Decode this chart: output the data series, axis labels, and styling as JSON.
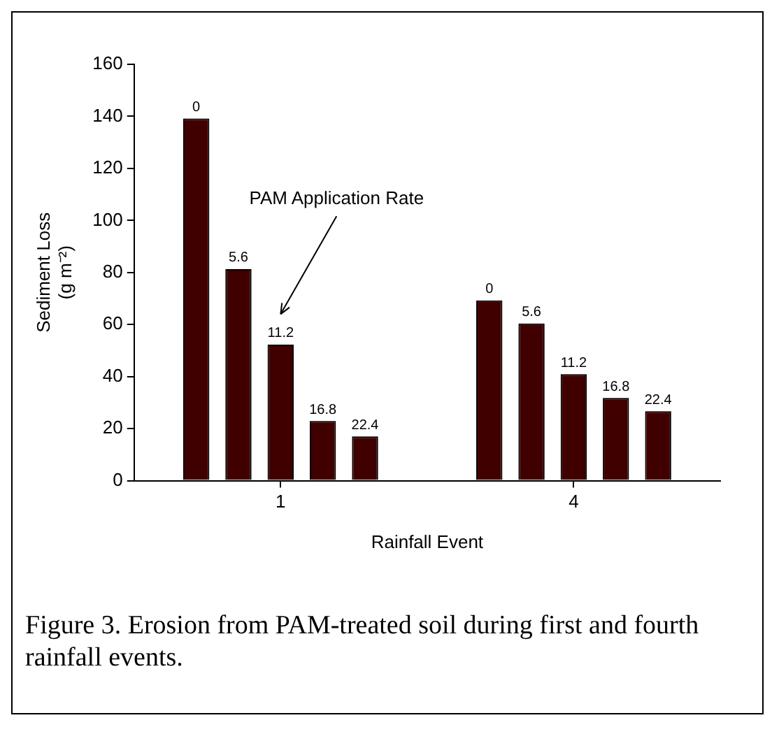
{
  "chart_data": {
    "type": "bar",
    "xlabel": "Rainfall Event",
    "ylabel": "Sediment Loss\n(g m⁻²)",
    "categories": [
      "1",
      "4"
    ],
    "series": [
      {
        "name": "0",
        "color": "#400000",
        "values": [
          139.2,
          69.3
        ]
      },
      {
        "name": "5.6",
        "color": "#400000",
        "values": [
          81.3,
          60.4
        ]
      },
      {
        "name": "11.2",
        "color": "#400000",
        "values": [
          52.3,
          40.9
        ]
      },
      {
        "name": "16.8",
        "color": "#400000",
        "values": [
          22.9,
          31.8
        ]
      },
      {
        "name": "22.4",
        "color": "#400000",
        "values": [
          17.0,
          26.7
        ]
      }
    ],
    "ylim": [
      0,
      160
    ],
    "yticks": [
      0,
      20,
      40,
      60,
      80,
      100,
      120,
      140,
      160
    ],
    "annotations": [
      "PAM Application Rate",
      "Figure 3. Erosion from PAM-treated soil during first and fourth rainfall events."
    ],
    "legend": false
  }
}
